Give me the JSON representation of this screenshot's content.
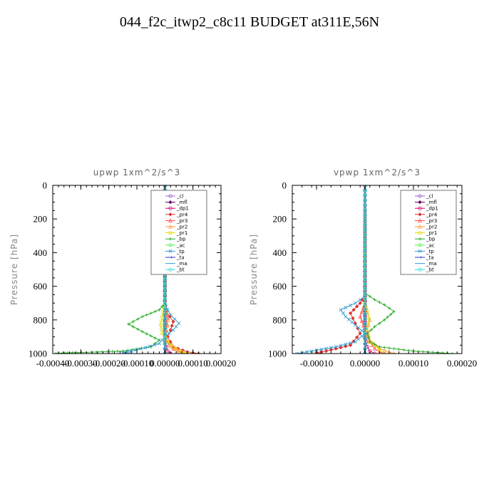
{
  "figure_title": "044_f2c_itwp2_c8c11  BUDGET at311E,56N",
  "chart_data": [
    {
      "type": "line",
      "title": "upwp   1xm^2/s^3",
      "ylabel": "Pressure [hPa]",
      "xlim": [
        -0.0004,
        0.0002
      ],
      "ylim": [
        1000,
        0
      ],
      "x_ticks": [
        -0.0004,
        -0.0003,
        -0.0002,
        -0.0001,
        0.0,
        0.0001,
        0.0002
      ],
      "x_tick_labels": [
        "-0.00040",
        "-0.00030",
        "-0.00020",
        "-0.00010",
        "0.00000",
        "0.00010",
        "0.00020"
      ],
      "y_ticks": [
        0,
        200,
        400,
        600,
        800,
        1000
      ],
      "y_tick_labels": [
        "0",
        "200",
        "400",
        "600",
        "800",
        "1000"
      ],
      "legend_position": "top-right",
      "series": [
        {
          "name": "_cl",
          "color": "#9966cc",
          "marker": "circle",
          "points": [
            [
              0,
              0
            ],
            [
              0,
              200
            ],
            [
              0,
              400
            ],
            [
              0,
              600
            ],
            [
              0,
              800
            ],
            [
              0,
              1000
            ]
          ]
        },
        {
          "name": "_mfl",
          "color": "#660066",
          "marker": "diamond",
          "points": [
            [
              0,
              0
            ],
            [
              0,
              200
            ],
            [
              0,
              400
            ],
            [
              0,
              600
            ],
            [
              0,
              800
            ],
            [
              0,
              1000
            ]
          ]
        },
        {
          "name": "_dp1",
          "color": "#cc0066",
          "marker": "circle",
          "points": [
            [
              0,
              0
            ],
            [
              0,
              500
            ],
            [
              0,
              900
            ],
            [
              5e-06,
              960
            ],
            [
              1e-05,
              985
            ],
            [
              2e-05,
              1000
            ]
          ]
        },
        {
          "name": "_pr4",
          "color": "#dd3333",
          "marker": "diamond",
          "points": [
            [
              0,
              0
            ],
            [
              0,
              680
            ],
            [
              5e-06,
              750
            ],
            [
              3e-05,
              810
            ],
            [
              2e-05,
              860
            ],
            [
              1e-05,
              900
            ],
            [
              3e-05,
              960
            ],
            [
              8e-05,
              990
            ],
            [
              0.00012,
              1000
            ]
          ]
        },
        {
          "name": "_pr3",
          "color": "#ff4444",
          "marker": "triangle",
          "points": [
            [
              0,
              0
            ],
            [
              0,
              700
            ],
            [
              1e-05,
              790
            ],
            [
              5e-06,
              860
            ],
            [
              0,
              920
            ],
            [
              3e-05,
              970
            ],
            [
              6e-05,
              990
            ],
            [
              8e-05,
              1000
            ]
          ]
        },
        {
          "name": "_pr2",
          "color": "#ff9933",
          "marker": "triangle",
          "points": [
            [
              0,
              0
            ],
            [
              0,
              700
            ],
            [
              1e-05,
              800
            ],
            [
              5e-06,
              900
            ],
            [
              2e-05,
              960
            ],
            [
              5e-05,
              985
            ],
            [
              7e-05,
              1000
            ]
          ]
        },
        {
          "name": "_pr1",
          "color": "#dddd00",
          "marker": "circle",
          "points": [
            [
              0,
              0
            ],
            [
              0,
              700
            ],
            [
              -1e-05,
              780
            ],
            [
              -1.5e-05,
              830
            ],
            [
              -1e-05,
              880
            ],
            [
              1e-05,
              930
            ],
            [
              4e-05,
              970
            ],
            [
              6e-05,
              990
            ],
            [
              8e-05,
              1000
            ]
          ]
        },
        {
          "name": "_bp",
          "color": "#22aa22",
          "marker": "plus",
          "points": [
            [
              0,
              0
            ],
            [
              0,
              700
            ],
            [
              -2e-05,
              740
            ],
            [
              -8e-05,
              780
            ],
            [
              -0.00013,
              825
            ],
            [
              -8e-05,
              870
            ],
            [
              -2e-05,
              920
            ],
            [
              -5e-05,
              960
            ],
            [
              -0.00015,
              985
            ],
            [
              -0.00028,
              993
            ],
            [
              -0.00038,
              997
            ],
            [
              -0.00039,
              1000
            ]
          ]
        },
        {
          "name": "_ac",
          "color": "#55ee55",
          "marker": "circle",
          "points": [
            [
              0,
              0
            ],
            [
              0,
              1000
            ]
          ]
        },
        {
          "name": "_tp",
          "color": "#3399cc",
          "marker": "cross",
          "points": [
            [
              0,
              0
            ],
            [
              0,
              700
            ],
            [
              1e-05,
              740
            ],
            [
              2e-05,
              770
            ],
            [
              5e-05,
              820
            ],
            [
              3e-05,
              860
            ],
            [
              0,
              900
            ],
            [
              -2e-05,
              940
            ],
            [
              -7e-05,
              965
            ],
            [
              -0.00012,
              985
            ],
            [
              -0.00015,
              995
            ],
            [
              -0.00013,
              1000
            ]
          ]
        },
        {
          "name": "_ta",
          "color": "#3333cc",
          "marker": "arrow",
          "points": [
            [
              0,
              0
            ],
            [
              0,
              1000
            ]
          ]
        },
        {
          "name": "_ma",
          "color": "#33aacc",
          "marker": "dash",
          "points": [
            [
              0,
              0
            ],
            [
              0,
              1000
            ]
          ]
        },
        {
          "name": "_bt",
          "color": "#33dddd",
          "marker": "circle",
          "points": [
            [
              0,
              0
            ],
            [
              0,
              1000
            ]
          ]
        }
      ]
    },
    {
      "type": "line",
      "title": "vpwp   1xm^2/s^3",
      "ylabel": "Pressure [hPa]",
      "xlim": [
        -0.00015,
        0.0002
      ],
      "ylim": [
        1000,
        0
      ],
      "x_ticks": [
        -0.0001,
        0.0,
        0.0001,
        0.0002
      ],
      "x_tick_labels": [
        "-0.00010",
        "0.00000",
        "0.00010",
        "0.00020"
      ],
      "y_ticks": [
        0,
        200,
        400,
        600,
        800,
        1000
      ],
      "y_tick_labels": [
        "0",
        "200",
        "400",
        "600",
        "800",
        "1000"
      ],
      "legend_position": "top-right",
      "series": [
        {
          "name": "_cl",
          "color": "#9966cc",
          "marker": "circle",
          "points": [
            [
              0,
              0
            ],
            [
              0,
              200
            ],
            [
              0,
              400
            ],
            [
              0,
              600
            ],
            [
              0,
              800
            ],
            [
              0,
              1000
            ]
          ]
        },
        {
          "name": "_mfl",
          "color": "#660066",
          "marker": "diamond",
          "points": [
            [
              0,
              0
            ],
            [
              0,
              200
            ],
            [
              0,
              400
            ],
            [
              0,
              600
            ],
            [
              0,
              800
            ],
            [
              0,
              1000
            ]
          ]
        },
        {
          "name": "_dp1",
          "color": "#cc0066",
          "marker": "circle",
          "points": [
            [
              0,
              0
            ],
            [
              0,
              900
            ],
            [
              5e-06,
              960
            ],
            [
              1e-05,
              985
            ],
            [
              2e-05,
              1000
            ]
          ]
        },
        {
          "name": "_pr4",
          "color": "#dd3333",
          "marker": "diamond",
          "points": [
            [
              0,
              0
            ],
            [
              0,
              660
            ],
            [
              -1e-05,
              700
            ],
            [
              -3e-05,
              760
            ],
            [
              -2e-05,
              820
            ],
            [
              -1e-05,
              880
            ],
            [
              -3e-05,
              950
            ],
            [
              -8e-05,
              985
            ],
            [
              -0.0001,
              995
            ],
            [
              -9e-05,
              1000
            ]
          ]
        },
        {
          "name": "_pr3",
          "color": "#ff4444",
          "marker": "triangle",
          "points": [
            [
              0,
              0
            ],
            [
              0,
              700
            ],
            [
              -1e-05,
              780
            ],
            [
              0,
              860
            ],
            [
              1e-05,
              930
            ],
            [
              2e-05,
              970
            ],
            [
              3e-05,
              990
            ],
            [
              4e-05,
              1000
            ]
          ]
        },
        {
          "name": "_pr2",
          "color": "#ff9933",
          "marker": "triangle",
          "points": [
            [
              0,
              0
            ],
            [
              0,
              700
            ],
            [
              5e-06,
              760
            ],
            [
              1e-05,
              800
            ],
            [
              5e-06,
              860
            ],
            [
              1e-05,
              920
            ],
            [
              3e-05,
              970
            ],
            [
              5e-05,
              990
            ],
            [
              6e-05,
              1000
            ]
          ]
        },
        {
          "name": "_pr1",
          "color": "#dddd00",
          "marker": "circle",
          "points": [
            [
              0,
              0
            ],
            [
              0,
              700
            ],
            [
              5e-06,
              750
            ],
            [
              8e-06,
              790
            ],
            [
              3e-06,
              860
            ],
            [
              1e-05,
              930
            ],
            [
              3e-05,
              975
            ],
            [
              4e-05,
              1000
            ]
          ]
        },
        {
          "name": "_bp",
          "color": "#22aa22",
          "marker": "plus",
          "points": [
            [
              0,
              0
            ],
            [
              0,
              640
            ],
            [
              2e-05,
              680
            ],
            [
              4e-05,
              710
            ],
            [
              6e-05,
              750
            ],
            [
              4e-05,
              800
            ],
            [
              2e-05,
              840
            ],
            [
              5e-06,
              880
            ],
            [
              1e-05,
              930
            ],
            [
              3e-05,
              960
            ],
            [
              0.0001,
              985
            ],
            [
              0.00018,
              1000
            ]
          ]
        },
        {
          "name": "_ac",
          "color": "#55ee55",
          "marker": "circle",
          "points": [
            [
              0,
              0
            ],
            [
              0,
              1000
            ]
          ]
        },
        {
          "name": "_tp",
          "color": "#3399cc",
          "marker": "cross",
          "points": [
            [
              0,
              0
            ],
            [
              0,
              660
            ],
            [
              -2e-05,
              700
            ],
            [
              -5e-05,
              740
            ],
            [
              -4e-05,
              780
            ],
            [
              -2e-05,
              830
            ],
            [
              0,
              880
            ],
            [
              -2e-05,
              930
            ],
            [
              -6e-05,
              960
            ],
            [
              -0.0001,
              980
            ],
            [
              -0.00013,
              995
            ],
            [
              -0.00014,
              1000
            ]
          ]
        },
        {
          "name": "_ta",
          "color": "#3333cc",
          "marker": "arrow",
          "points": [
            [
              0,
              0
            ],
            [
              0,
              1000
            ]
          ]
        },
        {
          "name": "_ma",
          "color": "#33aacc",
          "marker": "dash",
          "points": [
            [
              0,
              0
            ],
            [
              0,
              1000
            ]
          ]
        },
        {
          "name": "_bt",
          "color": "#33dddd",
          "marker": "circle",
          "points": [
            [
              0,
              0
            ],
            [
              0,
              1000
            ]
          ]
        }
      ]
    }
  ]
}
